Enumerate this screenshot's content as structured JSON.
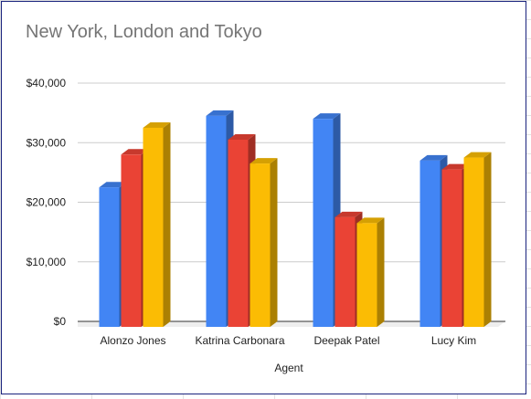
{
  "chart_data": {
    "type": "bar",
    "style": "3d-column",
    "title": "New York, London and Tokyo",
    "xlabel": "Agent",
    "ylabel": "",
    "categories": [
      "Alonzo Jones",
      "Katrina Carbonara",
      "Deepak Patel",
      "Lucy Kim"
    ],
    "series": [
      {
        "values": [
          22500,
          34500,
          34000,
          27000
        ],
        "color": "#4285f4"
      },
      {
        "values": [
          28000,
          30500,
          17500,
          25500
        ],
        "color": "#ea4335"
      },
      {
        "values": [
          32500,
          26500,
          16500,
          27500
        ],
        "color": "#fbbc04"
      }
    ],
    "ylim": [
      0,
      40000
    ],
    "yticks": [
      0,
      10000,
      20000,
      30000,
      40000
    ],
    "ytick_labels": [
      "$0",
      "$10,000",
      "$20,000",
      "$30,000",
      "$40,000"
    ],
    "grid": true,
    "legend": "none"
  }
}
